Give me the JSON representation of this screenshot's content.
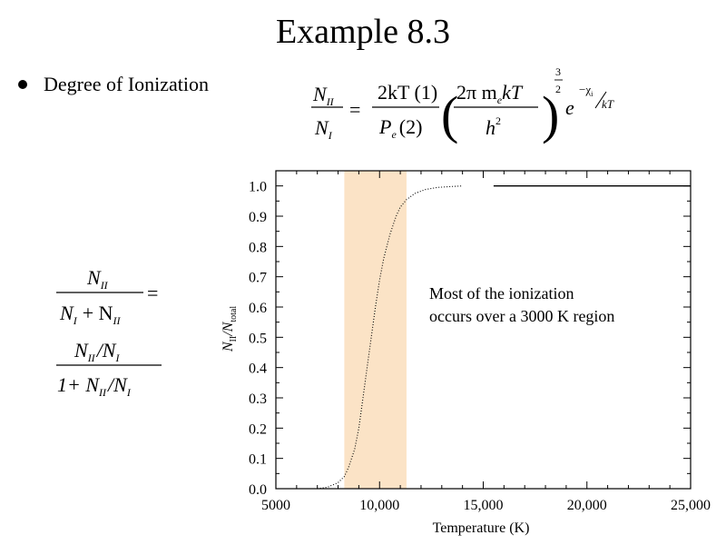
{
  "page": {
    "title": "Example 8.3",
    "bullet_text": "Degree of Ionization"
  },
  "equation_top": {
    "lhs_num": "N",
    "lhs_num_sub": "II",
    "lhs_den": "N",
    "lhs_den_sub": "I",
    "equals": "=",
    "frac1_num": "2kT (1)",
    "frac1_den_P": "P",
    "frac1_den_sub": "e",
    "frac1_den_rest": "(2)",
    "frac2_num_a": "2π m",
    "frac2_num_sub": "e",
    "frac2_num_b": "kT",
    "frac2_den": "h",
    "frac2_den_sup": "2",
    "power_num": "3",
    "power_den": "2",
    "exp_base": "e",
    "exp_top": "−χ",
    "exp_sub": "i",
    "exp_bottom": "kT"
  },
  "equation_left": {
    "num1": "N",
    "num1_sub": "II",
    "den1_a": "N",
    "den1_a_sub": "I",
    "den1_plus": "+ N",
    "den1_b_sub": "II",
    "equals": "=",
    "num2_a": "N",
    "num2_a_sub": "II",
    "num2_slash": "/N",
    "num2_b_sub": "I",
    "den2_a": "1+ N",
    "den2_a_sub": "II",
    "den2_slash": "/N",
    "den2_b_sub": "I"
  },
  "annotation": {
    "line1": "Most of the ionization",
    "line2": "occurs over a 3000 K region"
  },
  "colors": {
    "band": "#fbe3c6",
    "curve": "#000000",
    "axis": "#000000"
  },
  "chart_data": {
    "type": "line",
    "title": "",
    "xlabel": "Temperature (K)",
    "ylabel_main": "N",
    "ylabel_sub1": "II",
    "ylabel_mid": "/N",
    "ylabel_sub2": "total",
    "xlim": [
      5000,
      25000
    ],
    "ylim": [
      0.0,
      1.05
    ],
    "x_ticks": [
      5000,
      10000,
      15000,
      20000,
      25000
    ],
    "x_tick_labels": [
      "5000",
      "10,000",
      "15,000",
      "20,000",
      "25,000"
    ],
    "y_ticks": [
      0.0,
      0.1,
      0.2,
      0.3,
      0.4,
      0.5,
      0.6,
      0.7,
      0.8,
      0.9,
      1.0
    ],
    "y_tick_labels": [
      "0.0",
      "0.1",
      "0.2",
      "0.3",
      "0.4",
      "0.5",
      "0.6",
      "0.7",
      "0.8",
      "0.9",
      "1.0"
    ],
    "highlight_band": [
      8300,
      11300
    ],
    "grid": false,
    "series": [
      {
        "style": "dotted",
        "x": [
          7000,
          7500,
          8000,
          8300,
          8500,
          8800,
          9000,
          9200,
          9400,
          9600,
          9800,
          10000,
          10200,
          10500,
          10800,
          11000,
          11300,
          11700,
          12200,
          12800,
          13500,
          14000
        ],
        "y": [
          0.0,
          0.005,
          0.02,
          0.04,
          0.07,
          0.13,
          0.2,
          0.3,
          0.4,
          0.5,
          0.6,
          0.69,
          0.76,
          0.84,
          0.9,
          0.93,
          0.955,
          0.975,
          0.988,
          0.995,
          0.998,
          1.0
        ]
      },
      {
        "style": "solid",
        "x": [
          15500,
          25000
        ],
        "y": [
          1.0,
          1.0
        ]
      }
    ]
  }
}
